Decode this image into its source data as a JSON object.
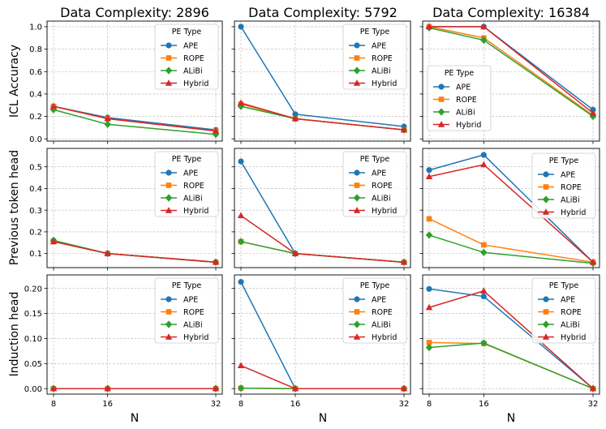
{
  "chart_data": {
    "type": "line",
    "x": [
      8,
      16,
      32
    ],
    "xlabel": "N",
    "col_titles": [
      "Data Complexity: 2896",
      "Data Complexity: 5792",
      "Data Complexity: 16384"
    ],
    "row_labels": [
      "ICL Accuracy",
      "Previous token head",
      "Induction head"
    ],
    "legend_title": "PE Type",
    "series_names": [
      "APE",
      "ROPE",
      "ALiBi",
      "Hybrid"
    ],
    "series_colors": [
      "#1f77b4",
      "#ff7f0e",
      "#2ca02c",
      "#d62728"
    ],
    "series_markers": [
      "circle",
      "square",
      "diamond",
      "triangle"
    ],
    "rows": [
      {
        "ylim": [
          -0.02,
          1.05
        ],
        "yticks": [
          0.0,
          0.2,
          0.4,
          0.6,
          0.8,
          1.0
        ],
        "ytick_labels": [
          "0.0",
          "0.2",
          "0.4",
          "0.6",
          "0.8",
          "1.0"
        ],
        "panels": [
          {
            "legend": "upper-right",
            "series": [
              [
                0.29,
                0.19,
                0.08
              ],
              [
                0.29,
                0.18,
                0.07
              ],
              [
                0.26,
                0.13,
                0.04
              ],
              [
                0.29,
                0.18,
                0.07
              ]
            ]
          },
          {
            "legend": "upper-right",
            "series": [
              [
                1.0,
                0.22,
                0.11
              ],
              [
                0.31,
                0.18,
                0.08
              ],
              [
                0.29,
                0.18,
                0.08
              ],
              [
                0.32,
                0.18,
                0.08
              ]
            ]
          },
          {
            "legend": "center-left",
            "series": [
              [
                1.0,
                1.0,
                0.26
              ],
              [
                1.0,
                0.9,
                0.21
              ],
              [
                0.99,
                0.88,
                0.2
              ],
              [
                1.0,
                1.0,
                0.23
              ]
            ]
          }
        ]
      },
      {
        "ylim": [
          0.035,
          0.585
        ],
        "yticks": [
          0.1,
          0.2,
          0.3,
          0.4,
          0.5
        ],
        "ytick_labels": [
          "0.1",
          "0.2",
          "0.3",
          "0.4",
          "0.5"
        ],
        "panels": [
          {
            "legend": "upper-right",
            "series": [
              [
                0.16,
                0.1,
                0.06
              ],
              [
                0.155,
                0.1,
                0.06
              ],
              [
                0.16,
                0.1,
                0.06
              ],
              [
                0.155,
                0.1,
                0.06
              ]
            ]
          },
          {
            "legend": "upper-right",
            "series": [
              [
                0.525,
                0.1,
                0.06
              ],
              [
                0.155,
                0.1,
                0.06
              ],
              [
                0.155,
                0.1,
                0.06
              ],
              [
                0.275,
                0.1,
                0.06
              ]
            ]
          },
          {
            "legend": "center-right",
            "series": [
              [
                0.485,
                0.555,
                0.06
              ],
              [
                0.26,
                0.14,
                0.06
              ],
              [
                0.185,
                0.105,
                0.055
              ],
              [
                0.455,
                0.51,
                0.06
              ]
            ]
          }
        ]
      },
      {
        "ylim": [
          -0.011,
          0.227
        ],
        "yticks": [
          0.0,
          0.05,
          0.1,
          0.15,
          0.2
        ],
        "ytick_labels": [
          "0.00",
          "0.05",
          "0.10",
          "0.15",
          "0.20"
        ],
        "panels": [
          {
            "legend": "upper-right",
            "series": [
              [
                0.0,
                0.0,
                0.0
              ],
              [
                0.0,
                0.0,
                0.0
              ],
              [
                0.0,
                0.0,
                0.0
              ],
              [
                0.0,
                0.0,
                0.0
              ]
            ]
          },
          {
            "legend": "upper-right",
            "series": [
              [
                0.213,
                0.0,
                0.0
              ],
              [
                0.001,
                0.0,
                0.0
              ],
              [
                0.001,
                0.0,
                0.0
              ],
              [
                0.046,
                0.0,
                0.0
              ]
            ]
          },
          {
            "legend": "upper-right",
            "series": [
              [
                0.199,
                0.184,
                0.0
              ],
              [
                0.092,
                0.09,
                0.0
              ],
              [
                0.082,
                0.091,
                0.0
              ],
              [
                0.162,
                0.195,
                0.0
              ]
            ]
          }
        ]
      }
    ]
  }
}
